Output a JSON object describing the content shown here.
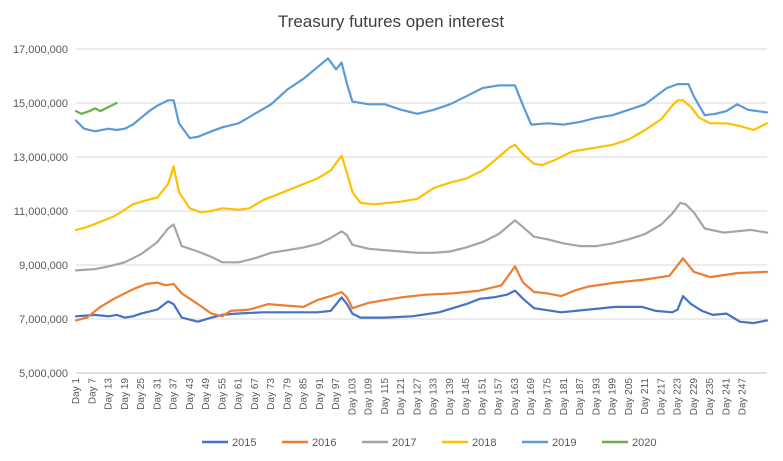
{
  "chart_data": {
    "type": "line",
    "title": "Treasury futures open interest",
    "xlabel": "",
    "ylabel": "",
    "ylim": [
      5000000,
      17000000
    ],
    "yticks": [
      5000000,
      7000000,
      9000000,
      11000000,
      13000000,
      15000000,
      17000000
    ],
    "ytick_labels": [
      "5,000,000",
      "7,000,000",
      "9,000,000",
      "11,000,000",
      "13,000,000",
      "15,000,000",
      "17,000,000"
    ],
    "xlim": [
      1,
      256
    ],
    "x_ticks": [
      1,
      7,
      13,
      19,
      25,
      31,
      37,
      43,
      49,
      55,
      61,
      67,
      73,
      79,
      85,
      91,
      97,
      103,
      109,
      115,
      121,
      127,
      133,
      139,
      145,
      151,
      157,
      163,
      169,
      175,
      181,
      187,
      193,
      199,
      205,
      211,
      217,
      223,
      229,
      235,
      241,
      247
    ],
    "x_tick_labels": [
      "Day 1",
      "Day 7",
      "Day 13",
      "Day 19",
      "Day 25",
      "Day 31",
      "Day 37",
      "Day 43",
      "Day 49",
      "Day 55",
      "Day 61",
      "Day 67",
      "Day 73",
      "Day 79",
      "Day 85",
      "Day 91",
      "Day 97",
      "Day 103",
      "Day 109",
      "Day 115",
      "Day 121",
      "Day 127",
      "Day 133",
      "Day 139",
      "Day 145",
      "Day 151",
      "Day 157",
      "Day 163",
      "Day 169",
      "Day 175",
      "Day 181",
      "Day 187",
      "Day 193",
      "Day 199",
      "Day 205",
      "Day 211",
      "Day 217",
      "Day 223",
      "Day 229",
      "Day 235",
      "Day 241",
      "Day 247"
    ],
    "grid": true,
    "legend_position": "bottom",
    "series": [
      {
        "name": "2015",
        "color": "#4472C4",
        "points": [
          [
            1,
            7100000
          ],
          [
            8,
            7150000
          ],
          [
            13,
            7100000
          ],
          [
            16,
            7150000
          ],
          [
            19,
            7050000
          ],
          [
            22,
            7100000
          ],
          [
            25,
            7200000
          ],
          [
            31,
            7350000
          ],
          [
            35,
            7650000
          ],
          [
            37,
            7550000
          ],
          [
            40,
            7050000
          ],
          [
            46,
            6900000
          ],
          [
            51,
            7050000
          ],
          [
            55,
            7150000
          ],
          [
            60,
            7200000
          ],
          [
            70,
            7250000
          ],
          [
            80,
            7250000
          ],
          [
            90,
            7250000
          ],
          [
            95,
            7300000
          ],
          [
            99,
            7800000
          ],
          [
            101,
            7550000
          ],
          [
            103,
            7200000
          ],
          [
            106,
            7050000
          ],
          [
            115,
            7050000
          ],
          [
            125,
            7100000
          ],
          [
            135,
            7250000
          ],
          [
            145,
            7550000
          ],
          [
            150,
            7750000
          ],
          [
            155,
            7800000
          ],
          [
            160,
            7900000
          ],
          [
            163,
            8050000
          ],
          [
            166,
            7750000
          ],
          [
            170,
            7400000
          ],
          [
            180,
            7250000
          ],
          [
            190,
            7350000
          ],
          [
            200,
            7450000
          ],
          [
            210,
            7450000
          ],
          [
            215,
            7300000
          ],
          [
            221,
            7250000
          ],
          [
            223,
            7350000
          ],
          [
            225,
            7850000
          ],
          [
            228,
            7550000
          ],
          [
            232,
            7300000
          ],
          [
            236,
            7150000
          ],
          [
            241,
            7200000
          ],
          [
            246,
            6900000
          ],
          [
            251,
            6850000
          ],
          [
            256,
            6950000
          ]
        ]
      },
      {
        "name": "2016",
        "color": "#ED7D31",
        "points": [
          [
            1,
            6950000
          ],
          [
            5,
            7050000
          ],
          [
            10,
            7450000
          ],
          [
            15,
            7750000
          ],
          [
            22,
            8100000
          ],
          [
            27,
            8300000
          ],
          [
            31,
            8350000
          ],
          [
            34,
            8250000
          ],
          [
            37,
            8300000
          ],
          [
            40,
            7950000
          ],
          [
            46,
            7550000
          ],
          [
            51,
            7200000
          ],
          [
            55,
            7100000
          ],
          [
            58,
            7300000
          ],
          [
            65,
            7350000
          ],
          [
            72,
            7550000
          ],
          [
            78,
            7500000
          ],
          [
            85,
            7450000
          ],
          [
            90,
            7700000
          ],
          [
            95,
            7850000
          ],
          [
            99,
            8000000
          ],
          [
            101,
            7800000
          ],
          [
            103,
            7400000
          ],
          [
            109,
            7600000
          ],
          [
            115,
            7700000
          ],
          [
            121,
            7800000
          ],
          [
            130,
            7900000
          ],
          [
            140,
            7950000
          ],
          [
            150,
            8050000
          ],
          [
            158,
            8250000
          ],
          [
            163,
            8950000
          ],
          [
            166,
            8350000
          ],
          [
            170,
            8000000
          ],
          [
            175,
            7950000
          ],
          [
            180,
            7850000
          ],
          [
            185,
            8050000
          ],
          [
            190,
            8200000
          ],
          [
            200,
            8350000
          ],
          [
            210,
            8450000
          ],
          [
            220,
            8600000
          ],
          [
            225,
            9250000
          ],
          [
            229,
            8750000
          ],
          [
            235,
            8550000
          ],
          [
            245,
            8700000
          ],
          [
            256,
            8750000
          ]
        ]
      },
      {
        "name": "2017",
        "color": "#A5A5A5",
        "points": [
          [
            1,
            8800000
          ],
          [
            8,
            8850000
          ],
          [
            13,
            8950000
          ],
          [
            19,
            9100000
          ],
          [
            25,
            9400000
          ],
          [
            31,
            9850000
          ],
          [
            35,
            10350000
          ],
          [
            37,
            10500000
          ],
          [
            40,
            9700000
          ],
          [
            46,
            9500000
          ],
          [
            51,
            9300000
          ],
          [
            55,
            9100000
          ],
          [
            61,
            9100000
          ],
          [
            67,
            9250000
          ],
          [
            73,
            9450000
          ],
          [
            79,
            9550000
          ],
          [
            85,
            9650000
          ],
          [
            91,
            9800000
          ],
          [
            95,
            10000000
          ],
          [
            99,
            10250000
          ],
          [
            101,
            10100000
          ],
          [
            103,
            9750000
          ],
          [
            109,
            9600000
          ],
          [
            115,
            9550000
          ],
          [
            121,
            9500000
          ],
          [
            127,
            9450000
          ],
          [
            133,
            9450000
          ],
          [
            139,
            9500000
          ],
          [
            145,
            9650000
          ],
          [
            151,
            9850000
          ],
          [
            157,
            10150000
          ],
          [
            163,
            10650000
          ],
          [
            166,
            10400000
          ],
          [
            170,
            10050000
          ],
          [
            175,
            9950000
          ],
          [
            181,
            9800000
          ],
          [
            187,
            9700000
          ],
          [
            193,
            9700000
          ],
          [
            199,
            9800000
          ],
          [
            205,
            9950000
          ],
          [
            211,
            10150000
          ],
          [
            217,
            10500000
          ],
          [
            221,
            10900000
          ],
          [
            224,
            11300000
          ],
          [
            226,
            11250000
          ],
          [
            229,
            10950000
          ],
          [
            233,
            10350000
          ],
          [
            240,
            10200000
          ],
          [
            245,
            10250000
          ],
          [
            250,
            10300000
          ],
          [
            256,
            10200000
          ]
        ]
      },
      {
        "name": "2018",
        "color": "#FFC000",
        "points": [
          [
            1,
            10300000
          ],
          [
            5,
            10400000
          ],
          [
            10,
            10600000
          ],
          [
            15,
            10800000
          ],
          [
            19,
            11050000
          ],
          [
            22,
            11250000
          ],
          [
            27,
            11400000
          ],
          [
            31,
            11500000
          ],
          [
            35,
            12000000
          ],
          [
            37,
            12650000
          ],
          [
            39,
            11700000
          ],
          [
            43,
            11100000
          ],
          [
            47,
            10950000
          ],
          [
            51,
            11000000
          ],
          [
            55,
            11100000
          ],
          [
            61,
            11050000
          ],
          [
            65,
            11100000
          ],
          [
            70,
            11400000
          ],
          [
            75,
            11600000
          ],
          [
            80,
            11800000
          ],
          [
            85,
            12000000
          ],
          [
            90,
            12200000
          ],
          [
            95,
            12500000
          ],
          [
            99,
            13050000
          ],
          [
            101,
            12400000
          ],
          [
            103,
            11700000
          ],
          [
            106,
            11300000
          ],
          [
            111,
            11250000
          ],
          [
            121,
            11350000
          ],
          [
            127,
            11450000
          ],
          [
            133,
            11850000
          ],
          [
            139,
            12050000
          ],
          [
            145,
            12200000
          ],
          [
            151,
            12500000
          ],
          [
            157,
            13000000
          ],
          [
            161,
            13350000
          ],
          [
            163,
            13450000
          ],
          [
            166,
            13100000
          ],
          [
            170,
            12750000
          ],
          [
            173,
            12700000
          ],
          [
            178,
            12900000
          ],
          [
            184,
            13200000
          ],
          [
            193,
            13350000
          ],
          [
            199,
            13450000
          ],
          [
            205,
            13650000
          ],
          [
            211,
            14000000
          ],
          [
            217,
            14400000
          ],
          [
            221,
            14900000
          ],
          [
            223,
            15100000
          ],
          [
            225,
            15100000
          ],
          [
            228,
            14850000
          ],
          [
            231,
            14450000
          ],
          [
            235,
            14250000
          ],
          [
            241,
            14250000
          ],
          [
            246,
            14150000
          ],
          [
            251,
            14000000
          ],
          [
            256,
            14250000
          ]
        ]
      },
      {
        "name": "2019",
        "color": "#5B9BD5",
        "points": [
          [
            1,
            14350000
          ],
          [
            4,
            14050000
          ],
          [
            8,
            13950000
          ],
          [
            13,
            14050000
          ],
          [
            16,
            14000000
          ],
          [
            19,
            14050000
          ],
          [
            22,
            14200000
          ],
          [
            25,
            14450000
          ],
          [
            28,
            14700000
          ],
          [
            31,
            14900000
          ],
          [
            35,
            15100000
          ],
          [
            37,
            15100000
          ],
          [
            39,
            14250000
          ],
          [
            43,
            13700000
          ],
          [
            46,
            13750000
          ],
          [
            51,
            13950000
          ],
          [
            55,
            14100000
          ],
          [
            61,
            14250000
          ],
          [
            67,
            14600000
          ],
          [
            73,
            14950000
          ],
          [
            79,
            15500000
          ],
          [
            85,
            15900000
          ],
          [
            91,
            16400000
          ],
          [
            94,
            16650000
          ],
          [
            97,
            16250000
          ],
          [
            99,
            16500000
          ],
          [
            101,
            15700000
          ],
          [
            103,
            15050000
          ],
          [
            109,
            14950000
          ],
          [
            115,
            14950000
          ],
          [
            121,
            14750000
          ],
          [
            127,
            14600000
          ],
          [
            133,
            14750000
          ],
          [
            139,
            14950000
          ],
          [
            145,
            15250000
          ],
          [
            151,
            15550000
          ],
          [
            157,
            15650000
          ],
          [
            163,
            15650000
          ],
          [
            166,
            14900000
          ],
          [
            169,
            14200000
          ],
          [
            175,
            14250000
          ],
          [
            181,
            14200000
          ],
          [
            187,
            14300000
          ],
          [
            193,
            14450000
          ],
          [
            199,
            14550000
          ],
          [
            205,
            14750000
          ],
          [
            211,
            14950000
          ],
          [
            215,
            15250000
          ],
          [
            219,
            15550000
          ],
          [
            223,
            15700000
          ],
          [
            227,
            15700000
          ],
          [
            229,
            15250000
          ],
          [
            233,
            14550000
          ],
          [
            237,
            14600000
          ],
          [
            241,
            14700000
          ],
          [
            245,
            14950000
          ],
          [
            249,
            14750000
          ],
          [
            256,
            14650000
          ]
        ]
      },
      {
        "name": "2020",
        "color": "#70AD47",
        "points": [
          [
            1,
            14700000
          ],
          [
            3,
            14600000
          ],
          [
            6,
            14700000
          ],
          [
            8,
            14800000
          ],
          [
            10,
            14700000
          ],
          [
            12,
            14800000
          ],
          [
            14,
            14900000
          ],
          [
            16,
            15000000
          ]
        ]
      }
    ]
  }
}
